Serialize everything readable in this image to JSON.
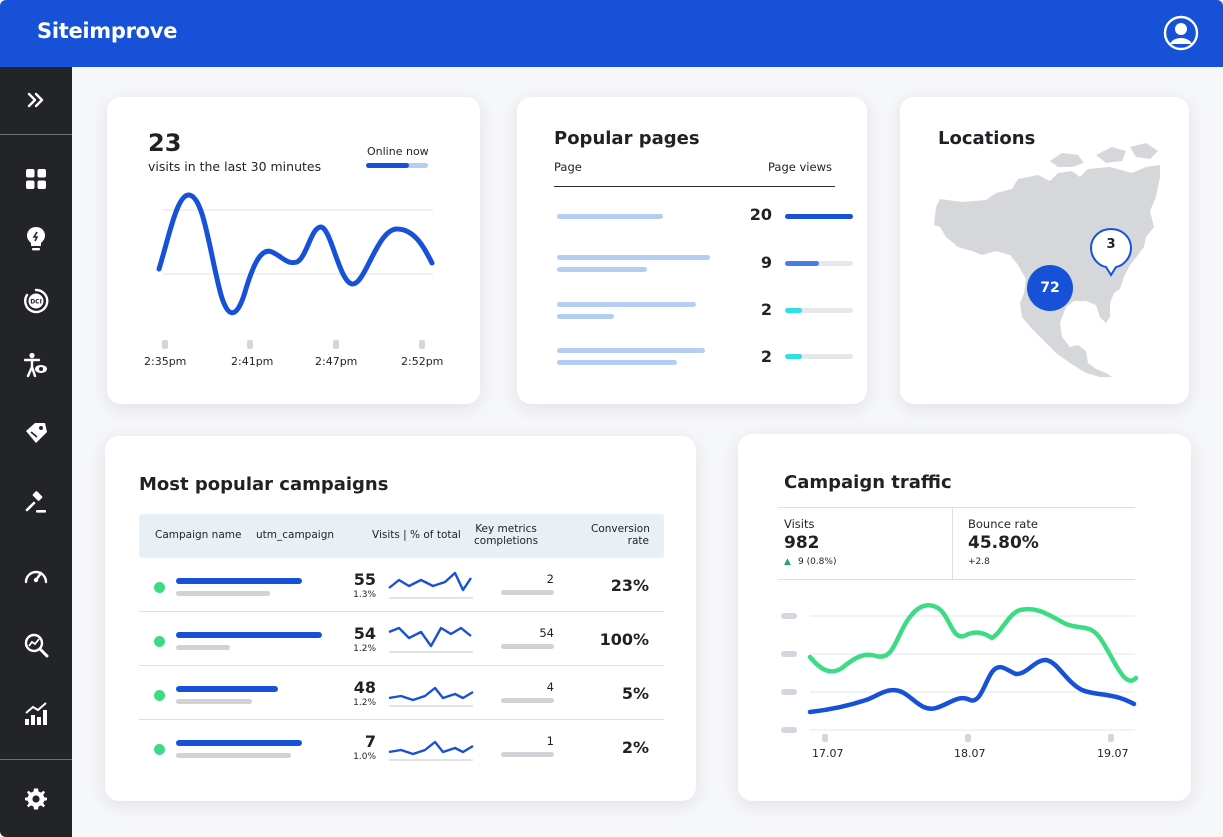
{
  "app": {
    "title": "Siteimprove"
  },
  "icons": {
    "expand": "double-chevron-right-icon",
    "user": "user-avatar-icon",
    "dashboard": "grid-icon",
    "insights": "lightbulb-icon",
    "dci": "dci-icon",
    "accessibility": "accessibility-icon",
    "marketing": "tag-icon",
    "policy": "gavel-icon",
    "performance": "speedometer-icon",
    "seo": "search-chart-icon",
    "analytics": "bar-chart-icon",
    "settings": "gear-icon",
    "dci_label": "DCI"
  },
  "colors": {
    "brand": "#1651d8",
    "accent_green": "#3ddc84",
    "accent_cyan": "#2ee0e6",
    "light_blue": "#b6cdf2",
    "sidebar": "#222427"
  },
  "visits": {
    "count": "23",
    "label": "visits in the last 30 minutes",
    "online_label": "Online now",
    "online_fraction": 0.7,
    "times": [
      "2:35pm",
      "2:41pm",
      "2:47pm",
      "2:52pm"
    ]
  },
  "popular_pages": {
    "title": "Popular pages",
    "col_page": "Page",
    "col_views": "Page views",
    "rows": [
      {
        "views": "20",
        "fraction": 1.0,
        "color": "#1651d8"
      },
      {
        "views": "9",
        "fraction": 0.5,
        "color": "#4a7be3"
      },
      {
        "views": "2",
        "fraction": 0.25,
        "color": "#2ee0e6"
      },
      {
        "views": "2",
        "fraction": 0.25,
        "color": "#2ee0e6"
      }
    ]
  },
  "locations": {
    "title": "Locations",
    "bubble_main": "72",
    "bubble_pin": "3"
  },
  "campaigns": {
    "title": "Most popular campaigns",
    "headers": {
      "name": "Campaign name",
      "utm": "utm_campaign",
      "visits": "Visits | % of total",
      "key_metrics": "Key metrics\ncompletions",
      "conversion": "Conversion\nrate"
    },
    "rows": [
      {
        "visits": "55",
        "pct": "1.3%",
        "completions": "2",
        "rate": "23%"
      },
      {
        "visits": "54",
        "pct": "1.2%",
        "completions": "54",
        "rate": "100%"
      },
      {
        "visits": "48",
        "pct": "1.2%",
        "completions": "4",
        "rate": "5%"
      },
      {
        "visits": "7",
        "pct": "1.0%",
        "completions": "1",
        "rate": "2%"
      }
    ]
  },
  "traffic": {
    "title": "Campaign traffic",
    "visits_label": "Visits",
    "visits_value": "982",
    "visits_delta": "9 (0.8%)",
    "bounce_label": "Bounce rate",
    "bounce_value": "45.80%",
    "bounce_delta": "+2.8",
    "dates": [
      "17.07",
      "18.07",
      "19.07"
    ]
  }
}
